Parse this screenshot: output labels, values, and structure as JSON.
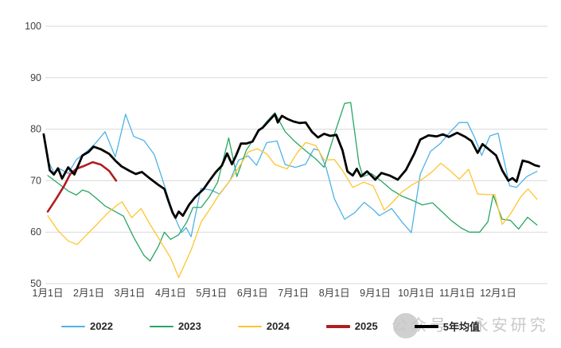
{
  "watermark": {
    "text": "公众号 · 永安研究"
  },
  "chart_data": {
    "type": "line",
    "title": "",
    "xlabel": "",
    "ylabel": "",
    "ylim": [
      50,
      100
    ],
    "yticks": [
      50,
      60,
      70,
      80,
      90,
      100
    ],
    "xticks": [
      "1月1日",
      "2月1日",
      "3月1日",
      "4月1日",
      "5月1日",
      "6月1日",
      "7月1日",
      "8月1日",
      "9月1日",
      "10月1日",
      "11月1日",
      "12月1日"
    ],
    "grid": "horizontal-only",
    "gridline_color": "#d9d9d9",
    "tick_label_color": "#404040",
    "legend_position": "bottom",
    "series": [
      {
        "name": "2022",
        "color": "#4db3e6",
        "width": 1.3,
        "swatch_h": 2,
        "points": [
          [
            1.0,
            74
          ],
          [
            1.15,
            71.6
          ],
          [
            1.3,
            72.3
          ],
          [
            1.5,
            71.4
          ],
          [
            1.7,
            74.1
          ],
          [
            1.93,
            75.5
          ],
          [
            2.16,
            77.2
          ],
          [
            2.4,
            79.5
          ],
          [
            2.65,
            74.6
          ],
          [
            2.9,
            82.9
          ],
          [
            3.1,
            78.6
          ],
          [
            3.35,
            77.8
          ],
          [
            3.6,
            75.1
          ],
          [
            3.8,
            70.3
          ],
          [
            4.05,
            63.9
          ],
          [
            4.27,
            59.9
          ],
          [
            4.38,
            60.9
          ],
          [
            4.5,
            59.1
          ],
          [
            4.74,
            68.5
          ],
          [
            4.98,
            68.2
          ],
          [
            5.2,
            67.4
          ],
          [
            5.45,
            70.0
          ],
          [
            5.66,
            74.0
          ],
          [
            5.9,
            74.8
          ],
          [
            6.1,
            73.0
          ],
          [
            6.35,
            77.4
          ],
          [
            6.6,
            77.7
          ],
          [
            6.8,
            73.1
          ],
          [
            7.05,
            72.6
          ],
          [
            7.3,
            73.2
          ],
          [
            7.5,
            76.2
          ],
          [
            7.62,
            75.9
          ],
          [
            7.8,
            72.5
          ],
          [
            8.0,
            66.5
          ],
          [
            8.25,
            62.5
          ],
          [
            8.5,
            63.8
          ],
          [
            8.73,
            65.8
          ],
          [
            8.95,
            64.4
          ],
          [
            9.1,
            63.2
          ],
          [
            9.4,
            64.6
          ],
          [
            9.65,
            62.0
          ],
          [
            9.88,
            59.9
          ],
          [
            10.1,
            71.3
          ],
          [
            10.35,
            75.7
          ],
          [
            10.6,
            77.3
          ],
          [
            10.8,
            79.2
          ],
          [
            11.05,
            81.3
          ],
          [
            11.25,
            81.3
          ],
          [
            11.42,
            78.5
          ],
          [
            11.6,
            74.9
          ],
          [
            11.8,
            78.7
          ],
          [
            12.0,
            79.2
          ],
          [
            12.28,
            69.0
          ],
          [
            12.45,
            68.7
          ],
          [
            12.7,
            70.8
          ],
          [
            12.95,
            71.8
          ]
        ]
      },
      {
        "name": "2023",
        "color": "#27a663",
        "width": 1.3,
        "swatch_h": 2,
        "points": [
          [
            1.0,
            71.0
          ],
          [
            1.25,
            69.5
          ],
          [
            1.5,
            68.0
          ],
          [
            1.7,
            67.2
          ],
          [
            1.85,
            68.2
          ],
          [
            2.0,
            67.8
          ],
          [
            2.2,
            66.5
          ],
          [
            2.4,
            65.1
          ],
          [
            2.65,
            64.0
          ],
          [
            2.85,
            63.1
          ],
          [
            3.1,
            59.0
          ],
          [
            3.35,
            55.5
          ],
          [
            3.5,
            54.4
          ],
          [
            3.7,
            57.2
          ],
          [
            3.85,
            60.0
          ],
          [
            4.0,
            58.6
          ],
          [
            4.2,
            59.5
          ],
          [
            4.4,
            62.0
          ],
          [
            4.55,
            64.8
          ],
          [
            4.75,
            64.8
          ],
          [
            4.95,
            66.9
          ],
          [
            5.15,
            69.7
          ],
          [
            5.42,
            78.3
          ],
          [
            5.62,
            70.8
          ],
          [
            5.85,
            75.9
          ],
          [
            6.1,
            79.0
          ],
          [
            6.35,
            81.5
          ],
          [
            6.55,
            83.2
          ],
          [
            6.8,
            79.5
          ],
          [
            7.05,
            77.5
          ],
          [
            7.3,
            75.8
          ],
          [
            7.55,
            74.2
          ],
          [
            7.75,
            72.6
          ],
          [
            8.0,
            79.0
          ],
          [
            8.25,
            85.0
          ],
          [
            8.4,
            85.2
          ],
          [
            8.6,
            73.4
          ],
          [
            8.7,
            70.8
          ],
          [
            8.9,
            71.4
          ],
          [
            9.15,
            69.9
          ],
          [
            9.4,
            68.2
          ],
          [
            9.65,
            67.0
          ],
          [
            9.9,
            66.2
          ],
          [
            10.15,
            65.3
          ],
          [
            10.4,
            65.7
          ],
          [
            10.6,
            64.2
          ],
          [
            10.85,
            62.3
          ],
          [
            11.1,
            60.8
          ],
          [
            11.3,
            60.0
          ],
          [
            11.55,
            60.0
          ],
          [
            11.75,
            62.0
          ],
          [
            11.88,
            67.2
          ],
          [
            12.1,
            62.5
          ],
          [
            12.3,
            62.3
          ],
          [
            12.5,
            60.6
          ],
          [
            12.72,
            62.9
          ],
          [
            12.95,
            61.4
          ]
        ]
      },
      {
        "name": "2024",
        "color": "#fec52e",
        "width": 1.3,
        "swatch_h": 2,
        "points": [
          [
            1.0,
            63.2
          ],
          [
            1.25,
            60.3
          ],
          [
            1.5,
            58.3
          ],
          [
            1.72,
            57.6
          ],
          [
            1.95,
            59.5
          ],
          [
            2.2,
            61.5
          ],
          [
            2.45,
            63.6
          ],
          [
            2.7,
            65.3
          ],
          [
            2.82,
            65.9
          ],
          [
            3.05,
            62.8
          ],
          [
            3.28,
            64.6
          ],
          [
            3.5,
            61.5
          ],
          [
            3.75,
            58.3
          ],
          [
            4.0,
            55.0
          ],
          [
            4.2,
            51.2
          ],
          [
            4.5,
            56.5
          ],
          [
            4.75,
            62.0
          ],
          [
            4.97,
            64.6
          ],
          [
            5.2,
            67.5
          ],
          [
            5.45,
            70.0
          ],
          [
            5.7,
            73.0
          ],
          [
            5.9,
            75.6
          ],
          [
            6.12,
            76.2
          ],
          [
            6.35,
            75.2
          ],
          [
            6.55,
            73.1
          ],
          [
            6.85,
            72.3
          ],
          [
            7.1,
            75.5
          ],
          [
            7.3,
            77.4
          ],
          [
            7.55,
            76.8
          ],
          [
            7.75,
            74.0
          ],
          [
            8.0,
            74.1
          ],
          [
            8.2,
            72.0
          ],
          [
            8.45,
            68.7
          ],
          [
            8.72,
            69.7
          ],
          [
            8.95,
            69.0
          ],
          [
            9.22,
            64.3
          ],
          [
            9.42,
            65.8
          ],
          [
            9.65,
            67.8
          ],
          [
            9.9,
            69.2
          ],
          [
            10.15,
            70.3
          ],
          [
            10.4,
            71.8
          ],
          [
            10.6,
            73.4
          ],
          [
            10.82,
            72.0
          ],
          [
            11.05,
            70.3
          ],
          [
            11.28,
            72.2
          ],
          [
            11.5,
            67.4
          ],
          [
            11.75,
            67.3
          ],
          [
            11.92,
            67.3
          ],
          [
            12.1,
            61.5
          ],
          [
            12.3,
            63.5
          ],
          [
            12.55,
            66.8
          ],
          [
            12.73,
            68.4
          ],
          [
            12.95,
            66.4
          ]
        ]
      },
      {
        "name": "2025",
        "color": "#ae1e23",
        "width": 2.6,
        "swatch_h": 4,
        "points": [
          [
            1.0,
            64.0
          ],
          [
            1.2,
            66.4
          ],
          [
            1.4,
            69.0
          ],
          [
            1.55,
            71.3
          ],
          [
            1.7,
            72.3
          ],
          [
            1.9,
            72.9
          ],
          [
            2.1,
            73.6
          ],
          [
            2.3,
            73.1
          ],
          [
            2.5,
            71.9
          ],
          [
            2.67,
            70.0
          ]
        ]
      },
      {
        "name": "5年均值",
        "color": "#000000",
        "width": 2.8,
        "swatch_h": 4,
        "points": [
          [
            0.9,
            79.0
          ],
          [
            1.05,
            72.0
          ],
          [
            1.15,
            71.2
          ],
          [
            1.25,
            72.4
          ],
          [
            1.35,
            70.4
          ],
          [
            1.5,
            72.6
          ],
          [
            1.65,
            71.2
          ],
          [
            1.85,
            74.9
          ],
          [
            2.0,
            75.6
          ],
          [
            2.12,
            76.6
          ],
          [
            2.3,
            76.1
          ],
          [
            2.5,
            75.2
          ],
          [
            2.65,
            73.9
          ],
          [
            2.8,
            72.8
          ],
          [
            3.0,
            71.9
          ],
          [
            3.15,
            71.3
          ],
          [
            3.3,
            71.7
          ],
          [
            3.5,
            70.4
          ],
          [
            3.7,
            69.2
          ],
          [
            3.85,
            68.4
          ],
          [
            3.95,
            66.0
          ],
          [
            4.05,
            63.8
          ],
          [
            4.12,
            62.8
          ],
          [
            4.2,
            64.0
          ],
          [
            4.3,
            63.2
          ],
          [
            4.45,
            65.3
          ],
          [
            4.6,
            66.8
          ],
          [
            4.8,
            68.3
          ],
          [
            4.95,
            70.0
          ],
          [
            5.1,
            71.6
          ],
          [
            5.25,
            72.9
          ],
          [
            5.38,
            75.3
          ],
          [
            5.5,
            73.2
          ],
          [
            5.6,
            74.9
          ],
          [
            5.72,
            77.2
          ],
          [
            5.85,
            77.2
          ],
          [
            6.0,
            77.6
          ],
          [
            6.15,
            79.8
          ],
          [
            6.25,
            80.3
          ],
          [
            6.4,
            81.6
          ],
          [
            6.55,
            82.9
          ],
          [
            6.62,
            81.3
          ],
          [
            6.72,
            82.6
          ],
          [
            6.85,
            82.0
          ],
          [
            7.0,
            81.5
          ],
          [
            7.15,
            81.2
          ],
          [
            7.3,
            81.3
          ],
          [
            7.45,
            79.5
          ],
          [
            7.6,
            78.4
          ],
          [
            7.75,
            79.1
          ],
          [
            7.9,
            78.7
          ],
          [
            8.05,
            78.9
          ],
          [
            8.2,
            75.9
          ],
          [
            8.32,
            71.8
          ],
          [
            8.45,
            71.0
          ],
          [
            8.55,
            72.3
          ],
          [
            8.65,
            70.8
          ],
          [
            8.8,
            71.8
          ],
          [
            9.0,
            70.2
          ],
          [
            9.15,
            71.5
          ],
          [
            9.35,
            71.0
          ],
          [
            9.55,
            70.2
          ],
          [
            9.75,
            72.1
          ],
          [
            9.95,
            75.2
          ],
          [
            10.1,
            78.0
          ],
          [
            10.3,
            78.8
          ],
          [
            10.5,
            78.6
          ],
          [
            10.65,
            79.0
          ],
          [
            10.8,
            78.5
          ],
          [
            11.0,
            79.3
          ],
          [
            11.2,
            78.5
          ],
          [
            11.35,
            77.7
          ],
          [
            11.5,
            75.4
          ],
          [
            11.62,
            77.1
          ],
          [
            11.8,
            75.9
          ],
          [
            11.95,
            74.9
          ],
          [
            12.1,
            72.0
          ],
          [
            12.25,
            70.0
          ],
          [
            12.35,
            70.5
          ],
          [
            12.45,
            69.8
          ],
          [
            12.6,
            73.9
          ],
          [
            12.75,
            73.6
          ],
          [
            12.9,
            73.0
          ],
          [
            13.0,
            72.8
          ]
        ]
      }
    ]
  }
}
